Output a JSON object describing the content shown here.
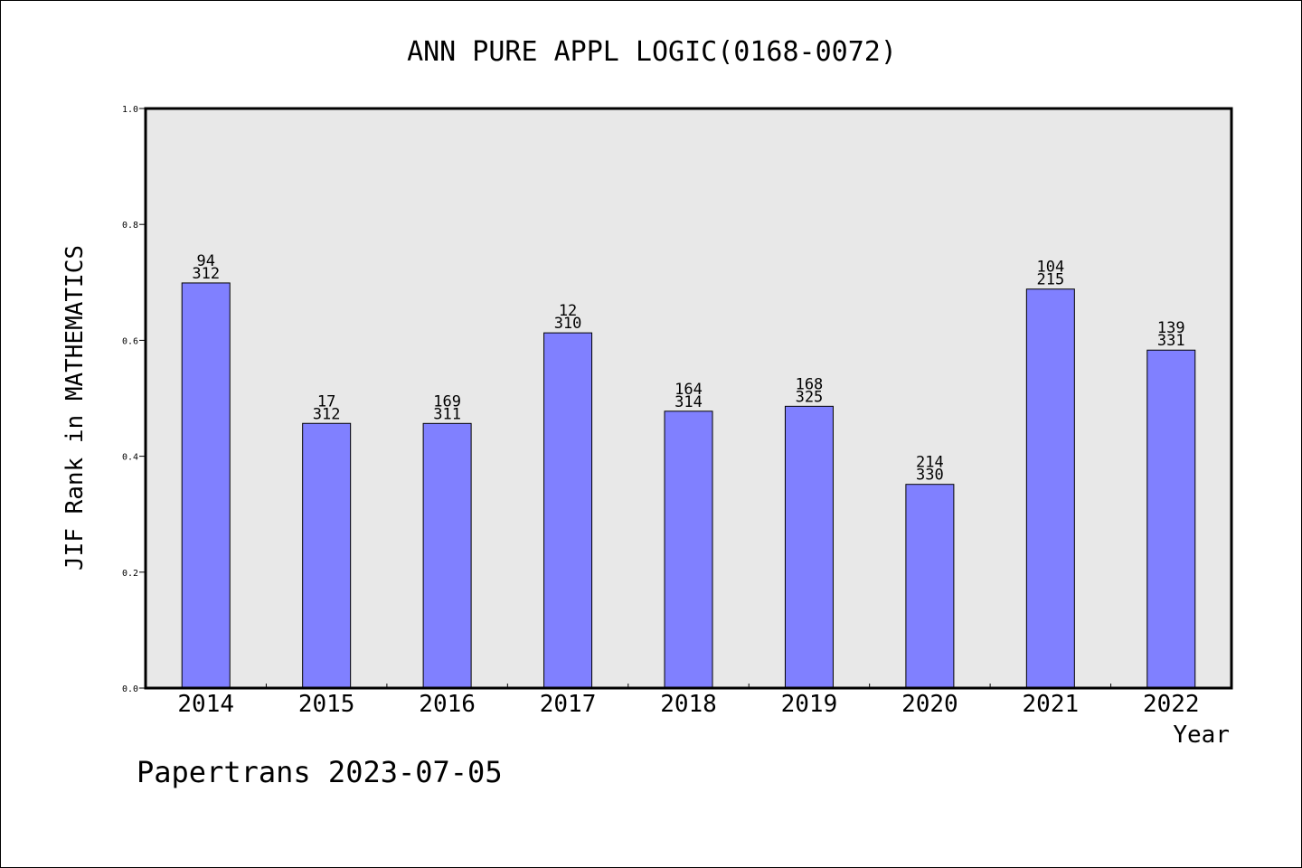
{
  "chart_data": {
    "type": "bar",
    "title": "ANN PURE APPL LOGIC(0168-0072)",
    "xlabel": "Year",
    "ylabel": "JIF Rank in MATHEMATICS",
    "ylim": [
      0,
      1.0
    ],
    "yticks": [
      "0.0",
      "0.2",
      "0.4",
      "0.6",
      "0.8",
      "1.0"
    ],
    "categories": [
      "2014",
      "2015",
      "2016",
      "2017",
      "2018",
      "2019",
      "2020",
      "2021",
      "2022"
    ],
    "values": [
      0.699,
      0.4567,
      0.4566,
      0.6129,
      0.4777,
      0.4862,
      0.3515,
      0.6884,
      0.5831
    ],
    "rank_labels": [
      "94",
      "17",
      "169",
      "12",
      "164",
      "168",
      "214",
      "104",
      "139"
    ],
    "total_labels": [
      "312",
      "312",
      "311",
      "310",
      "314",
      "325",
      "330",
      "215",
      "331"
    ],
    "bar_color": "#8080ff",
    "plot_background": "#e8e8e8",
    "grid": false,
    "legend": "none"
  },
  "footer": "Papertrans 2023-07-05"
}
